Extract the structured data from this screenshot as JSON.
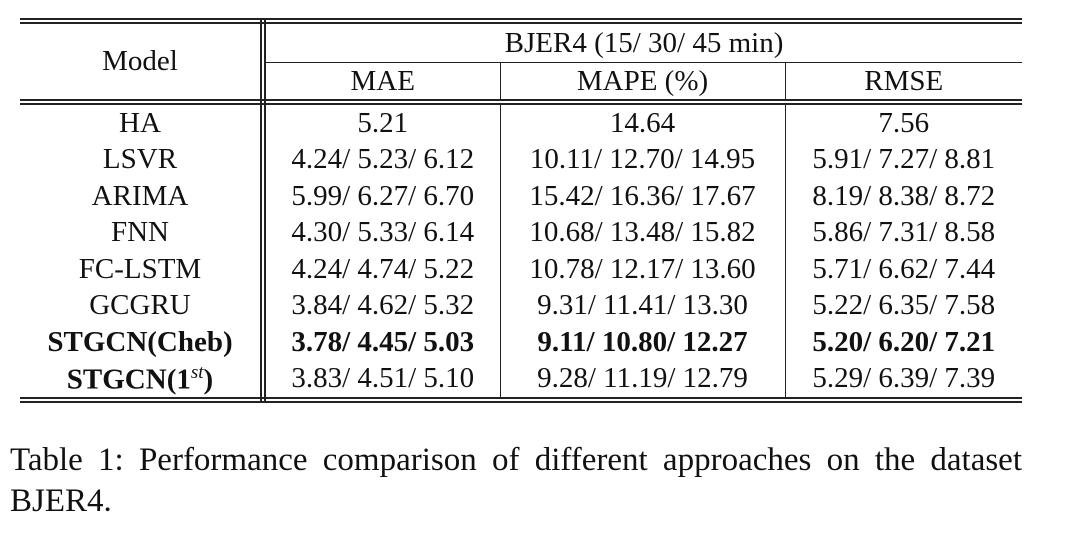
{
  "table": {
    "header": {
      "model": "Model",
      "group": "BJER4 (15/ 30/ 45 min)",
      "columns": [
        "MAE",
        "MAPE (%)",
        "RMSE"
      ]
    },
    "rows": [
      {
        "model": "HA",
        "values": [
          "5.21",
          "14.64",
          "7.56"
        ],
        "bold_model": false,
        "bold_values": false
      },
      {
        "model": "LSVR",
        "values": [
          "4.24/ 5.23/ 6.12",
          "10.11/ 12.70/ 14.95",
          "5.91/ 7.27/ 8.81"
        ],
        "bold_model": false,
        "bold_values": false
      },
      {
        "model": "ARIMA",
        "values": [
          "5.99/ 6.27/ 6.70",
          "15.42/ 16.36/ 17.67",
          "8.19/ 8.38/ 8.72"
        ],
        "bold_model": false,
        "bold_values": false
      },
      {
        "model": "FNN",
        "values": [
          "4.30/ 5.33/ 6.14",
          "10.68/ 13.48/ 15.82",
          "5.86/ 7.31/ 8.58"
        ],
        "bold_model": false,
        "bold_values": false
      },
      {
        "model": "FC-LSTM",
        "values": [
          "4.24/ 4.74/ 5.22",
          "10.78/ 12.17/ 13.60",
          "5.71/ 6.62/ 7.44"
        ],
        "bold_model": false,
        "bold_values": false
      },
      {
        "model": "GCGRU",
        "values": [
          "3.84/ 4.62/ 5.32",
          "9.31/ 11.41/ 13.30",
          "5.22/ 6.35/ 7.58"
        ],
        "bold_model": false,
        "bold_values": false
      },
      {
        "model": "STGCN(Cheb)",
        "values": [
          "3.78/ 4.45/ 5.03",
          "9.11/ 10.80/ 12.27",
          "5.20/ 6.20/ 7.21"
        ],
        "bold_model": true,
        "bold_values": true
      },
      {
        "model": {
          "text": "STGCN(1",
          "sup": "st",
          "after": ")"
        },
        "values": [
          "3.83/ 4.51/ 5.10",
          "9.28/ 11.19/ 12.79",
          "5.29/ 6.39/ 7.39"
        ],
        "bold_model": true,
        "bold_values": false
      }
    ]
  },
  "caption": "Table 1: Performance comparison of different approaches on the dataset BJER4."
}
